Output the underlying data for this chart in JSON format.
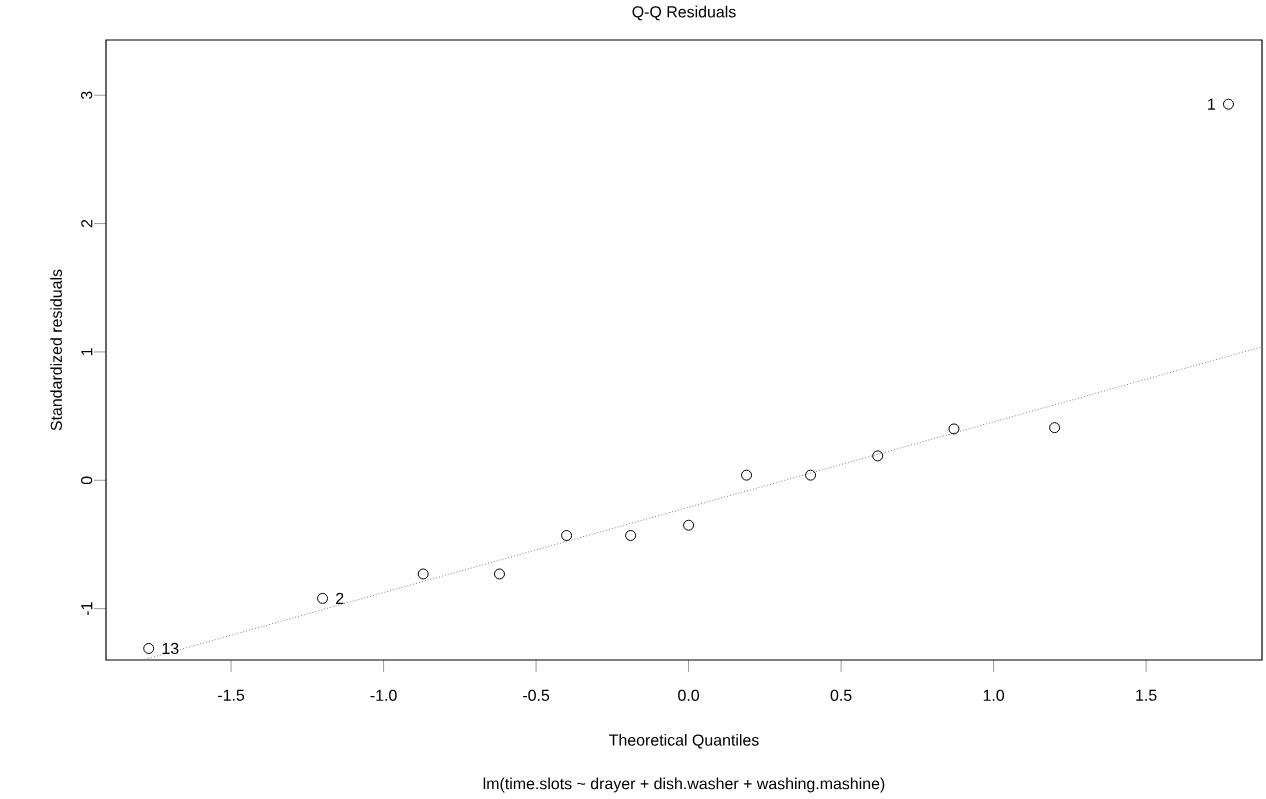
{
  "chart_data": {
    "type": "scatter",
    "title": "Q-Q Residuals",
    "xlabel": "Theoretical Quantiles",
    "ylabel": "Standardized residuals",
    "annotations": [
      "lm(time.slots ~ drayer + dish.washer + washing.mashine)",
      {
        "text": "13",
        "x": -1.77,
        "y": -1.31
      },
      {
        "text": "2",
        "x": -1.2,
        "y": -0.92
      },
      {
        "text": "1",
        "x": 1.77,
        "y": 2.93
      }
    ],
    "x": [
      -1.77,
      -1.2,
      -0.87,
      -0.62,
      -0.4,
      -0.19,
      0.0,
      0.19,
      0.4,
      0.62,
      0.87,
      1.2,
      1.77
    ],
    "series": [
      {
        "color": "#000000",
        "marker": "circle",
        "values": [
          -1.31,
          -0.92,
          -0.73,
          -0.73,
          -0.43,
          -0.43,
          -0.35,
          0.04,
          0.04,
          0.19,
          0.4,
          0.41,
          2.93
        ]
      },
      {
        "type": "line",
        "color": "#808080",
        "line_style": "dotted",
        "marker": "none",
        "x": [
          -1.79,
          1.88
        ],
        "values": [
          -1.4,
          1.04
        ]
      }
    ],
    "xlim": [
      -1.91,
      1.88
    ],
    "ylim": [
      -1.4,
      3.43
    ],
    "xticks": [
      {
        "value": -1.5,
        "label": "-1.5"
      },
      {
        "value": -1.0,
        "label": "-1.0"
      },
      {
        "value": -0.5,
        "label": "-0.5"
      },
      {
        "value": 0,
        "label": "0.0"
      },
      {
        "value": 0.5,
        "label": "0.5"
      },
      {
        "value": 1.0,
        "label": "1.0"
      },
      {
        "value": 1.5,
        "label": "1.5"
      }
    ],
    "yticks": [
      -1,
      0,
      1,
      2,
      3
    ],
    "grid": false
  }
}
